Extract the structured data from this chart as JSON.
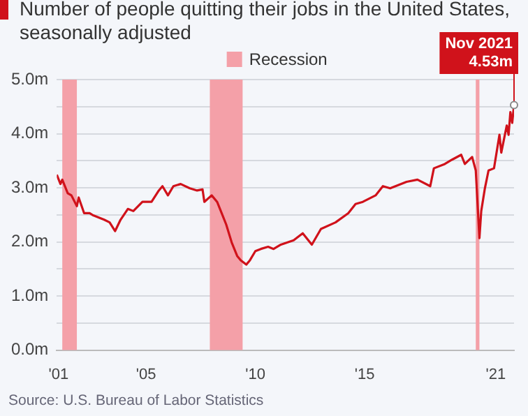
{
  "chart_data": {
    "type": "line",
    "title": "Number of people quitting their jobs in the United States, seasonally adjusted",
    "x": [
      "2000-12",
      "2001-02",
      "2001-03",
      "2001-06",
      "2001-08",
      "2001-11",
      "2001-12",
      "2002-03",
      "2002-06",
      "2002-08",
      "2003-02",
      "2003-05",
      "2003-08",
      "2003-11",
      "2004-03",
      "2004-06",
      "2004-11",
      "2005-04",
      "2005-08",
      "2005-10",
      "2006-01",
      "2006-04",
      "2006-08",
      "2007-01",
      "2007-05",
      "2007-08",
      "2007-09",
      "2008-01",
      "2008-04",
      "2008-07",
      "2008-09",
      "2008-12",
      "2009-03",
      "2009-05",
      "2009-08",
      "2009-10",
      "2010-01",
      "2010-04",
      "2010-08",
      "2010-11",
      "2011-03",
      "2011-10",
      "2012-03",
      "2012-08",
      "2013-01",
      "2013-09",
      "2014-04",
      "2014-08",
      "2014-12",
      "2015-07",
      "2015-11",
      "2016-03",
      "2016-12",
      "2017-06",
      "2018-01",
      "2018-03",
      "2018-09",
      "2019-01",
      "2019-06",
      "2019-08",
      "2019-12",
      "2020-02",
      "2020-04",
      "2020-05",
      "2020-07",
      "2020-09",
      "2020-12",
      "2021-03",
      "2021-04",
      "2021-07",
      "2021-08",
      "2021-09",
      "2021-10",
      "2021-11"
    ],
    "series": [
      {
        "color": "#d0121b",
        "values": [
          3.24,
          3.07,
          3.15,
          2.9,
          2.86,
          2.66,
          2.82,
          2.53,
          2.53,
          2.49,
          2.41,
          2.36,
          2.2,
          2.41,
          2.61,
          2.57,
          2.74,
          2.74,
          2.95,
          3.03,
          2.86,
          3.03,
          3.07,
          2.99,
          2.95,
          2.97,
          2.74,
          2.86,
          2.74,
          2.49,
          2.32,
          1.99,
          1.74,
          1.66,
          1.58,
          1.66,
          1.83,
          1.87,
          1.91,
          1.87,
          1.95,
          2.03,
          2.16,
          1.95,
          2.24,
          2.36,
          2.53,
          2.7,
          2.74,
          2.86,
          3.03,
          2.99,
          3.11,
          3.15,
          3.03,
          3.36,
          3.44,
          3.52,
          3.61,
          3.44,
          3.57,
          3.32,
          2.07,
          2.57,
          2.99,
          3.32,
          3.36,
          3.98,
          3.65,
          4.15,
          3.98,
          4.4,
          4.2,
          4.53
        ]
      }
    ],
    "xlim": [
      "2000-12",
      "2021-11"
    ],
    "xticks": [
      {
        "value": "2001-01",
        "label": "'01"
      },
      {
        "value": "2005-01",
        "label": "'05"
      },
      {
        "value": "2010-01",
        "label": "'10"
      },
      {
        "value": "2015-01",
        "label": "'15"
      },
      {
        "value": "2021-01",
        "label": "'21"
      }
    ],
    "ylim": [
      0,
      5
    ],
    "yticks": [
      {
        "value": 0,
        "label": "0.0m"
      },
      {
        "value": 0.5,
        "label": null
      },
      {
        "value": 1,
        "label": "1.0m"
      },
      {
        "value": 1.5,
        "label": null
      },
      {
        "value": 2,
        "label": "2.0m"
      },
      {
        "value": 2.5,
        "label": null
      },
      {
        "value": 3,
        "label": "3.0m"
      },
      {
        "value": 3.5,
        "label": null
      },
      {
        "value": 4,
        "label": "4.0m"
      },
      {
        "value": 4.5,
        "label": null
      },
      {
        "value": 5,
        "label": "5.0m"
      }
    ],
    "bands": [
      {
        "axis": "x",
        "from": "2001-03",
        "to": "2001-11",
        "label": "Recession",
        "color": "#f4a0a8"
      },
      {
        "axis": "x",
        "from": "2007-12",
        "to": "2009-06",
        "color": "#f4a0a8"
      },
      {
        "axis": "x",
        "from": "2020-02",
        "to": "2020-04",
        "color": "#f4a0a8"
      }
    ],
    "annotations": [
      {
        "text": "Nov 2021\n4.53m",
        "x": "2021-11",
        "y": 4.53
      },
      "Source: U.S. Bureau of Labor Statistics"
    ],
    "grid": "y",
    "legend": "top",
    "line_style": "solid"
  }
}
